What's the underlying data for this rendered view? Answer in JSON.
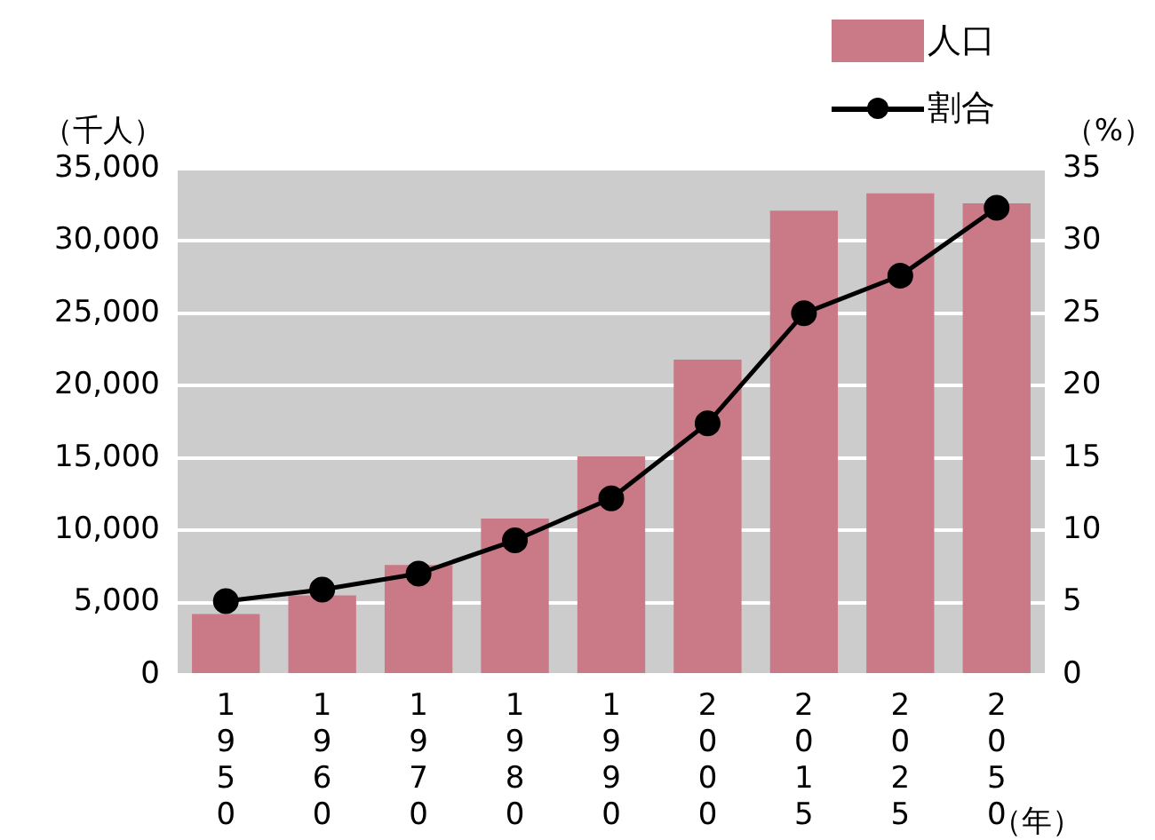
{
  "chart_data": {
    "type": "bar",
    "xlabel": "（年）",
    "ylabel": "（千人）",
    "y2label": "（%）",
    "categories": [
      "1950",
      "1960",
      "1970",
      "1980",
      "1990",
      "2000",
      "2015",
      "2025",
      "2050"
    ],
    "series": [
      {
        "name": "人口",
        "color": "#c97a86",
        "values": [
          4200,
          5500,
          7600,
          10800,
          15100,
          21800,
          32100,
          33300,
          32600
        ]
      },
      {
        "name": "割合",
        "type": "line",
        "axis": "y2",
        "color": "#000000",
        "marker": "circle",
        "values": [
          5.1,
          5.9,
          7.0,
          9.3,
          12.2,
          17.4,
          25.0,
          27.6,
          32.3
        ]
      }
    ],
    "ylim": [
      0,
      35000
    ],
    "yticks": [
      0,
      {
        "value": 5000,
        "label": "5,000"
      },
      {
        "value": 10000,
        "label": "10,000"
      },
      {
        "value": 15000,
        "label": "15,000"
      },
      {
        "value": 20000,
        "label": "20,000"
      },
      {
        "value": 25000,
        "label": "25,000"
      },
      {
        "value": 30000,
        "label": "30,000"
      },
      {
        "value": 35000,
        "label": "35,000"
      }
    ],
    "y2lim": [
      0,
      35
    ],
    "y2ticks": [
      0,
      5,
      10,
      15,
      20,
      25,
      30,
      35
    ],
    "grid": "y",
    "legend": "top right"
  }
}
